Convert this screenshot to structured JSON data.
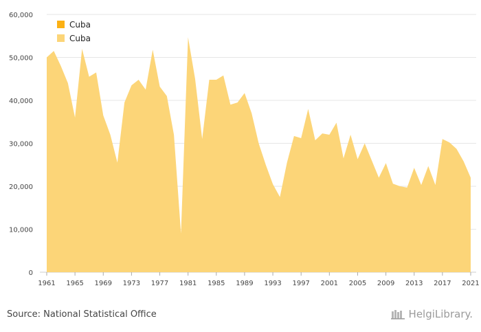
{
  "colors": {
    "series_dark": "#FCB114",
    "series_light": "#FCD578",
    "grid": "#e6e6e6",
    "axis_text": "#444444"
  },
  "footer": {
    "source": "Source: National Statistical Office",
    "logo_text": "HelgiLibrary."
  },
  "chart_data": {
    "type": "area",
    "title": "",
    "xlabel": "",
    "ylabel": "",
    "ylim": [
      0,
      60000
    ],
    "yticks": [
      0,
      10000,
      20000,
      30000,
      40000,
      50000,
      60000
    ],
    "ytick_labels": [
      "0",
      "10,000",
      "20,000",
      "30,000",
      "40,000",
      "50,000",
      "60,000"
    ],
    "xticks": [
      1961,
      1965,
      1969,
      1973,
      1977,
      1981,
      1985,
      1989,
      1993,
      1997,
      2001,
      2005,
      2009,
      2013,
      2017,
      2021
    ],
    "grid": true,
    "legend_position": "top-left",
    "legend": [
      {
        "name": "Cuba",
        "color": "#FCB114"
      },
      {
        "name": "Cuba",
        "color": "#FCD578"
      }
    ],
    "x": [
      1961,
      1962,
      1963,
      1964,
      1965,
      1966,
      1967,
      1968,
      1969,
      1970,
      1971,
      1972,
      1973,
      1974,
      1975,
      1976,
      1977,
      1978,
      1979,
      1980,
      1981,
      1982,
      1983,
      1984,
      1985,
      1986,
      1987,
      1988,
      1989,
      1990,
      1991,
      1992,
      1993,
      1994,
      1995,
      1996,
      1997,
      1998,
      1999,
      2000,
      2001,
      2002,
      2003,
      2004,
      2005,
      2006,
      2007,
      2008,
      2009,
      2010,
      2011,
      2012,
      2013,
      2014,
      2015,
      2016,
      2017,
      2018,
      2019,
      2020,
      2021
    ],
    "series": [
      {
        "name": "Cuba",
        "values": [
          50000,
          51500,
          48000,
          44000,
          36000,
          52000,
          45500,
          46500,
          36500,
          32000,
          25500,
          39500,
          43500,
          44800,
          42500,
          51800,
          43200,
          41000,
          32000,
          9000,
          54700,
          45000,
          31000,
          44800,
          44800,
          45800,
          39000,
          39500,
          41700,
          37000,
          30000,
          25000,
          20500,
          17500,
          25500,
          31700,
          31200,
          38000,
          30700,
          32300,
          32000,
          34800,
          26500,
          32000,
          26300,
          30000,
          26000,
          22000,
          25400,
          20600,
          20000,
          19700,
          24300,
          20300,
          24700,
          20300,
          31000,
          30200,
          28700,
          25800,
          22000
        ]
      }
    ]
  }
}
